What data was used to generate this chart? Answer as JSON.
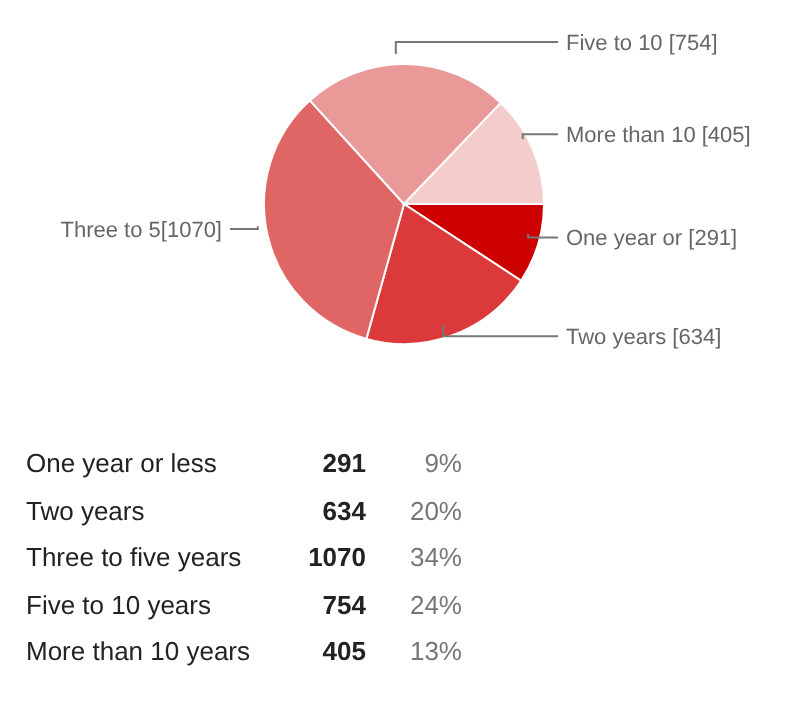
{
  "chart_data": [
    {
      "type": "pie",
      "categories": [
        null,
        null,
        null,
        null,
        null
      ],
      "values": [
        291,
        634,
        1070,
        754,
        405
      ],
      "colors": [
        "#cc0000",
        "#dc3a3a",
        "#e06666",
        "#ea9999",
        "#f4cccc"
      ],
      "value_labels": [
        "One year or [291]",
        "Two years [634]",
        "Three to 5[1070]",
        "Five to 10  [754]",
        "More than 10 [405]"
      ],
      "legend": false
    },
    {
      "type": "other",
      "categories": [
        "One year or less",
        "Two years",
        "Three to five years",
        "Five to 10 years",
        "More than 10 years"
      ],
      "values": [
        291,
        634,
        1070,
        754,
        405
      ],
      "data_labels": true,
      "annotations": [
        "9%",
        "20%",
        "34%",
        "24%",
        "13%"
      ]
    }
  ]
}
